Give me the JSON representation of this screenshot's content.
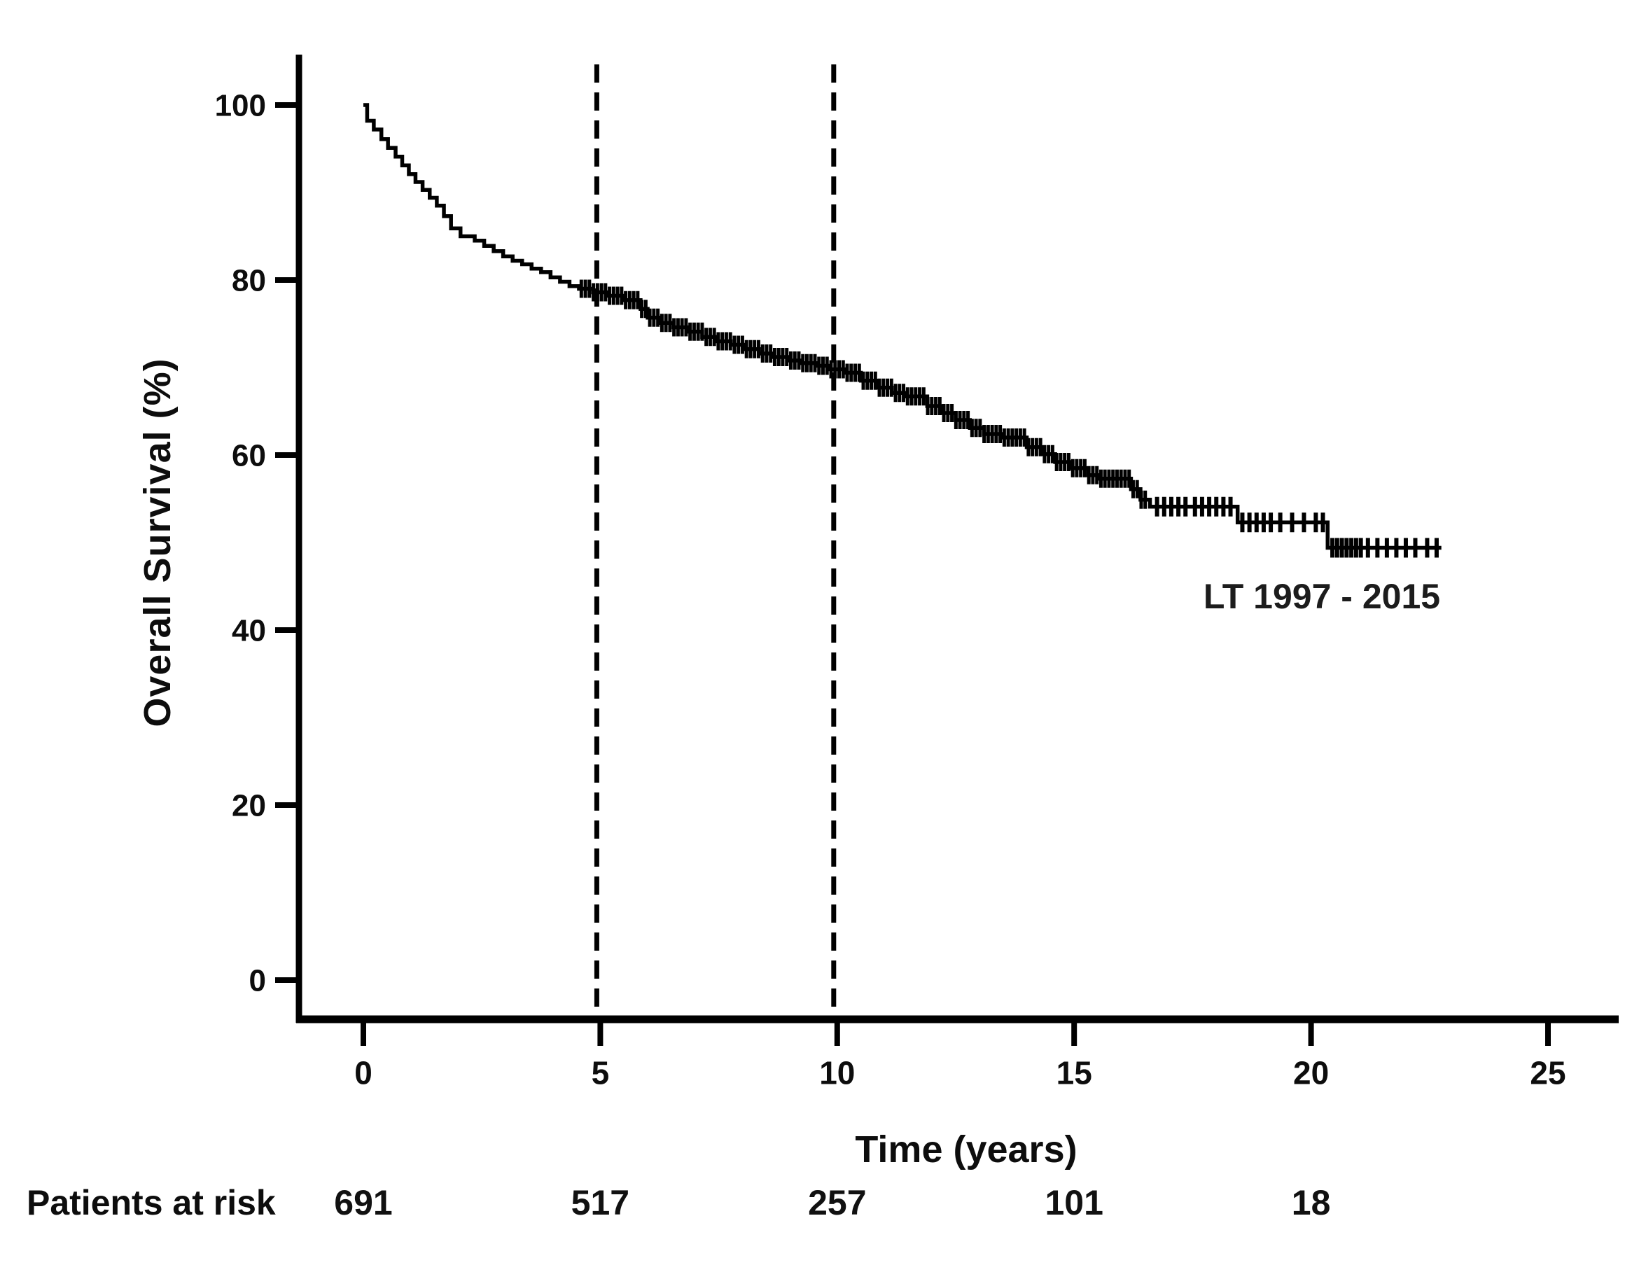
{
  "chart_data": {
    "type": "line",
    "subtype": "kaplan-meier-step",
    "title": "",
    "xlabel": "Time (years)",
    "ylabel": "Overall Survival (%)",
    "series_label": "LT 1997 - 2015",
    "colors": {
      "curve": "#000000",
      "axis": "#000000",
      "text": "#0d0d0d",
      "reference_line": "#000000"
    },
    "x_ticks": [
      0,
      5,
      10,
      15,
      20,
      25
    ],
    "y_ticks": [
      0,
      20,
      40,
      60,
      80,
      100
    ],
    "xlim": [
      0,
      26.5
    ],
    "ylim": [
      0,
      105
    ],
    "grid": false,
    "legend_position": "annotation-near-curve-end",
    "reference_lines_x": [
      5,
      10
    ],
    "km_steps": [
      [
        0,
        100
      ],
      [
        0.08,
        98.2
      ],
      [
        0.22,
        97.2
      ],
      [
        0.38,
        96.1
      ],
      [
        0.52,
        95.1
      ],
      [
        0.68,
        94.1
      ],
      [
        0.82,
        93.1
      ],
      [
        0.96,
        92.1
      ],
      [
        1.1,
        91.2
      ],
      [
        1.25,
        90.3
      ],
      [
        1.4,
        89.4
      ],
      [
        1.55,
        88.5
      ],
      [
        1.7,
        87.3
      ],
      [
        1.85,
        85.9
      ],
      [
        2.05,
        85.0
      ],
      [
        2.35,
        84.5
      ],
      [
        2.55,
        83.9
      ],
      [
        2.75,
        83.3
      ],
      [
        2.95,
        82.7
      ],
      [
        3.15,
        82.2
      ],
      [
        3.35,
        81.8
      ],
      [
        3.55,
        81.3
      ],
      [
        3.75,
        80.9
      ],
      [
        3.95,
        80.3
      ],
      [
        4.15,
        79.8
      ],
      [
        4.35,
        79.3
      ],
      [
        4.55,
        79.0
      ],
      [
        4.85,
        78.6
      ],
      [
        5.15,
        78.2
      ],
      [
        5.5,
        77.7
      ],
      [
        5.85,
        76.7
      ],
      [
        6.0,
        75.7
      ],
      [
        6.25,
        75.1
      ],
      [
        6.55,
        74.6
      ],
      [
        6.85,
        74.1
      ],
      [
        7.15,
        73.5
      ],
      [
        7.45,
        73.0
      ],
      [
        7.75,
        72.6
      ],
      [
        8.05,
        72.1
      ],
      [
        8.35,
        71.6
      ],
      [
        8.65,
        71.2
      ],
      [
        8.95,
        70.8
      ],
      [
        9.25,
        70.5
      ],
      [
        9.55,
        70.2
      ],
      [
        9.85,
        69.8
      ],
      [
        10.15,
        69.4
      ],
      [
        10.5,
        68.5
      ],
      [
        10.85,
        67.7
      ],
      [
        11.15,
        67.1
      ],
      [
        11.45,
        66.7
      ],
      [
        11.9,
        65.6
      ],
      [
        12.2,
        64.8
      ],
      [
        12.5,
        64.0
      ],
      [
        12.8,
        63.1
      ],
      [
        13.1,
        62.4
      ],
      [
        13.45,
        62.0
      ],
      [
        14.0,
        60.9
      ],
      [
        14.3,
        60.1
      ],
      [
        14.6,
        59.2
      ],
      [
        14.95,
        58.5
      ],
      [
        15.3,
        57.7
      ],
      [
        15.55,
        57.3
      ],
      [
        16.2,
        56.1
      ],
      [
        16.4,
        54.9
      ],
      [
        16.6,
        54.1
      ],
      [
        18.45,
        52.3
      ],
      [
        20.35,
        49.4
      ]
    ],
    "curve_end_year": 22.75,
    "censoring": {
      "dense_band": {
        "from_year": 4.6,
        "to_year": 16.55,
        "spacing_years": 0.085
      },
      "tail_marks_years": [
        16.75,
        16.9,
        17.05,
        17.2,
        17.35,
        17.55,
        17.7,
        17.85,
        18.0,
        18.15,
        18.3,
        18.55,
        18.7,
        18.85,
        19.0,
        19.15,
        19.35,
        19.6,
        19.85,
        20.1,
        20.25,
        20.45,
        20.55,
        20.65,
        20.75,
        20.85,
        20.95,
        21.05,
        21.2,
        21.4,
        21.6,
        21.8,
        22.0,
        22.2,
        22.45,
        22.65
      ]
    },
    "at_risk": {
      "label": "Patients at risk",
      "times": [
        0,
        5,
        10,
        15,
        20
      ],
      "counts": [
        "691",
        "517",
        "257",
        "101",
        "18"
      ]
    }
  }
}
